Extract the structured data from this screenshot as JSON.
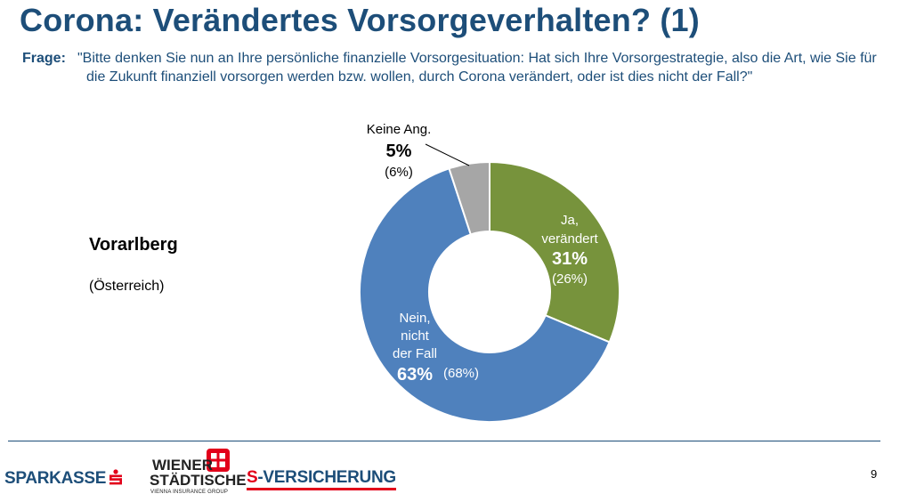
{
  "header": {
    "title": "Corona: Verändertes Vorsorgeverhalten? (1)",
    "question_label": "Frage:",
    "question_text": "\"Bitte denken Sie nun an Ihre persönliche finanzielle Vorsorgesituation: Hat sich Ihre Vorsorgestrategie, also die Art, wie Sie für die Zukunft finanziell vorsorgen werden bzw. wollen, durch Corona verändert, oder ist dies nicht der Fall?\""
  },
  "region": {
    "title": "Vorarlberg",
    "comparison": "(Österreich)"
  },
  "chart_data": {
    "type": "pie",
    "donut": true,
    "slices": [
      {
        "label_lines": [
          "Ja,",
          "verändert"
        ],
        "value": 31,
        "value_text": "31%",
        "comparison_text": "(26%)",
        "color": "#77933c"
      },
      {
        "label_lines": [
          "Nein,",
          "nicht",
          "der Fall"
        ],
        "value": 63,
        "value_text": "63%",
        "comparison_text": "(68%)",
        "color": "#4f81bd"
      },
      {
        "label_lines": [
          "Keine Ang."
        ],
        "value": 5,
        "value_text": "5%",
        "comparison_text": "(6%)",
        "color": "#a6a6a6"
      }
    ]
  },
  "footer": {
    "page_number": "9",
    "logo_sparkasse": "SPARKASSE",
    "logo_ws_line1": "WIENER",
    "logo_ws_line2": "STÄDTISCHE",
    "logo_ws_line3": "VIENNA INSURANCE GROUP",
    "logo_sv_s": "S",
    "logo_sv_rest": "-VERSICHERUNG"
  },
  "colors": {
    "brand_blue": "#1d4e79",
    "brand_red": "#e2001a"
  }
}
